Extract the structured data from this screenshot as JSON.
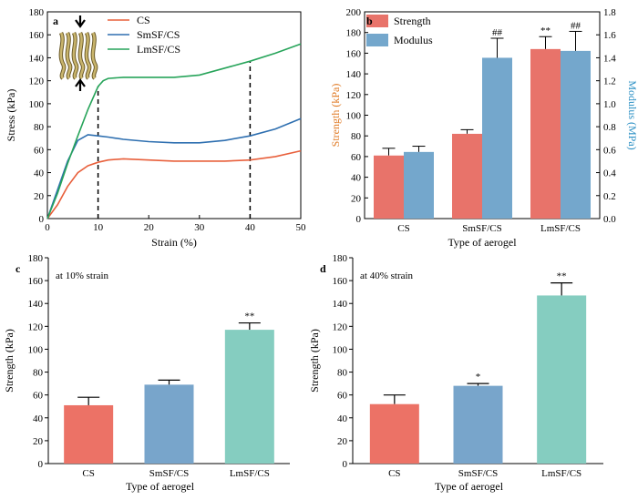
{
  "chart_data": [
    {
      "panel": "a",
      "type": "line",
      "xlabel": "Strain (%)",
      "ylabel": "Stress (kPa)",
      "xlim": [
        0,
        50
      ],
      "ylim": [
        0,
        180
      ],
      "xticks": [
        "0",
        "10",
        "20",
        "30",
        "40",
        "50"
      ],
      "yticks": [
        "0",
        "20",
        "40",
        "60",
        "80",
        "100",
        "120",
        "140",
        "160",
        "180"
      ],
      "series": [
        {
          "name": "CS",
          "color": "#e8603c",
          "x": [
            0,
            2,
            4,
            6,
            8,
            10,
            12,
            15,
            20,
            25,
            30,
            35,
            40,
            45,
            50
          ],
          "y": [
            0,
            12,
            28,
            40,
            46,
            49,
            51,
            52,
            51,
            50,
            50,
            50,
            51,
            54,
            59
          ]
        },
        {
          "name": "SmSF/CS",
          "color": "#2e6fb0",
          "x": [
            0,
            2,
            4,
            6,
            8,
            10,
            12,
            15,
            20,
            25,
            30,
            35,
            40,
            45,
            50
          ],
          "y": [
            0,
            25,
            50,
            68,
            73,
            72,
            71,
            69,
            67,
            66,
            66,
            68,
            72,
            78,
            87
          ]
        },
        {
          "name": "LmSF/CS",
          "color": "#27a45a",
          "x": [
            0,
            2,
            4,
            6,
            8,
            10,
            11,
            12,
            15,
            20,
            25,
            30,
            35,
            40,
            45,
            50
          ],
          "y": [
            0,
            22,
            48,
            72,
            95,
            115,
            120,
            122,
            123,
            123,
            123,
            125,
            131,
            137,
            144,
            152
          ]
        }
      ],
      "vlines": [
        10,
        40
      ],
      "legend": "top-center",
      "inset": "stacked sheet structure image with down and up arrows"
    },
    {
      "panel": "b",
      "type": "bar",
      "xlabel": "Type of aerogel",
      "ylabel": "Strength (kPa)",
      "ylabel_right": "Modulus (MPa)",
      "ylim": [
        0,
        200
      ],
      "ylim_right": [
        0,
        1.8
      ],
      "categories": [
        "CS",
        "SmSF/CS",
        "LmSF/CS"
      ],
      "yticks": [
        "0",
        "20",
        "40",
        "60",
        "80",
        "100",
        "120",
        "140",
        "160",
        "180",
        "200"
      ],
      "yticks_right": [
        "0.0",
        "0.2",
        "0.4",
        "0.6",
        "0.8",
        "1.0",
        "1.2",
        "1.4",
        "1.6",
        "1.8"
      ],
      "series": [
        {
          "name": "Strength",
          "color": "#e8736a",
          "axis": "left",
          "values": [
            61,
            82,
            164
          ],
          "errors": [
            7,
            4,
            12
          ],
          "marks": [
            "",
            "",
            "**"
          ]
        },
        {
          "name": "Modulus",
          "color": "#74a7cc",
          "axis": "right",
          "values": [
            0.58,
            1.4,
            1.46
          ],
          "errors": [
            0.05,
            0.17,
            0.17
          ],
          "marks": [
            "",
            "##",
            "##"
          ]
        }
      ],
      "left_axis_color": "#e07a24",
      "right_axis_color": "#2a8fc4",
      "legend": "top-left"
    },
    {
      "panel": "c",
      "type": "bar",
      "annotation": "at 10% strain",
      "xlabel": "Type of aerogel",
      "ylabel": "Strength (kPa)",
      "ylim": [
        0,
        180
      ],
      "yticks": [
        "0",
        "20",
        "40",
        "60",
        "80",
        "100",
        "120",
        "140",
        "160",
        "180"
      ],
      "categories": [
        "CS",
        "SmSF/CS",
        "LmSF/CS"
      ],
      "values": [
        51,
        69,
        117
      ],
      "errors": [
        7,
        4,
        6
      ],
      "marks": [
        "",
        "",
        "**"
      ],
      "colors": [
        "#ec7266",
        "#78a5cb",
        "#85cdc0"
      ]
    },
    {
      "panel": "d",
      "type": "bar",
      "annotation": "at 40% strain",
      "xlabel": "Type of aerogel",
      "ylabel": "Strength (kPa)",
      "ylim": [
        0,
        180
      ],
      "yticks": [
        "0",
        "20",
        "40",
        "60",
        "80",
        "100",
        "120",
        "140",
        "160",
        "180"
      ],
      "categories": [
        "CS",
        "SmSF/CS",
        "LmSF/CS"
      ],
      "values": [
        52,
        68,
        147
      ],
      "errors": [
        8,
        2,
        11
      ],
      "marks": [
        "",
        "*",
        "**"
      ],
      "colors": [
        "#ec7266",
        "#78a5cb",
        "#85cdc0"
      ]
    }
  ]
}
